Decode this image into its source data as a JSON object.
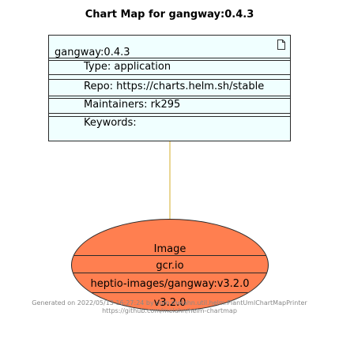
{
  "title": "Chart Map for gangway:0.4.3",
  "chart": {
    "name": "gangway:0.4.3",
    "type": "Type: application",
    "repo": "Repo: https://charts.helm.sh/stable",
    "maintainers": "Maintainers: rk295",
    "keywords": "Keywords:"
  },
  "image": {
    "header": "Image",
    "registry": "gcr.io",
    "repository": "heptio-images/gangway:v3.2.0",
    "tag": "v3.2.0"
  },
  "footer": {
    "line1": "Generated on 2022/05/13 16:27:24 by com.melahn.util.helm.PlantUmlChartMapPrinter",
    "line2": "https://github.com/melahn/helm-chartmap"
  },
  "colors": {
    "chart_fill": "#f0ffff",
    "image_fill": "#ff7f50",
    "connector": "#d4ae2b"
  }
}
